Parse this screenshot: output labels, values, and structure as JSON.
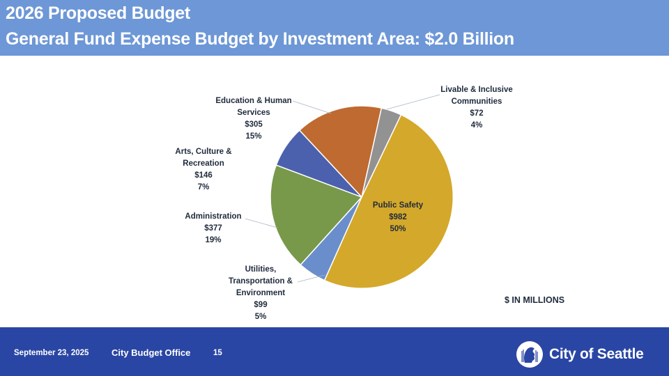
{
  "header": {
    "title_line1": "2026 Proposed Budget",
    "title_line2": "General Fund Expense Budget by Investment Area: $2.0 Billion"
  },
  "chart_data": {
    "type": "pie",
    "units_note": "$ IN MILLIONS",
    "slices": [
      {
        "name": "Livable & Inclusive Communities",
        "label_lines": [
          "Livable & Inclusive",
          "Communities"
        ],
        "value": 72,
        "value_label": "$72",
        "percent_label": "4%",
        "color": "#929292"
      },
      {
        "name": "Public Safety",
        "label_lines": [
          "Public Safety"
        ],
        "value": 982,
        "value_label": "$982",
        "percent_label": "50%",
        "color": "#d4a82a"
      },
      {
        "name": "Utilities, Transportation & Environment",
        "label_lines": [
          "Utilities,",
          "Transportation &",
          "Environment"
        ],
        "value": 99,
        "value_label": "$99",
        "percent_label": "5%",
        "color": "#6a8ecb"
      },
      {
        "name": "Administration",
        "label_lines": [
          "Administration"
        ],
        "value": 377,
        "value_label": "$377",
        "percent_label": "19%",
        "color": "#78994a"
      },
      {
        "name": "Arts, Culture & Recreation",
        "label_lines": [
          "Arts, Culture &",
          "Recreation"
        ],
        "value": 146,
        "value_label": "$146",
        "percent_label": "7%",
        "color": "#4c61ad"
      },
      {
        "name": "Education & Human Services",
        "label_lines": [
          "Education & Human",
          "Services"
        ],
        "value": 305,
        "value_label": "$305",
        "percent_label": "15%",
        "color": "#bf6a31"
      }
    ]
  },
  "footer": {
    "date": "September 23, 2025",
    "office": "City Budget Office",
    "page": "15",
    "city": "City of Seattle",
    "seal_icon": "city-seal-icon"
  }
}
